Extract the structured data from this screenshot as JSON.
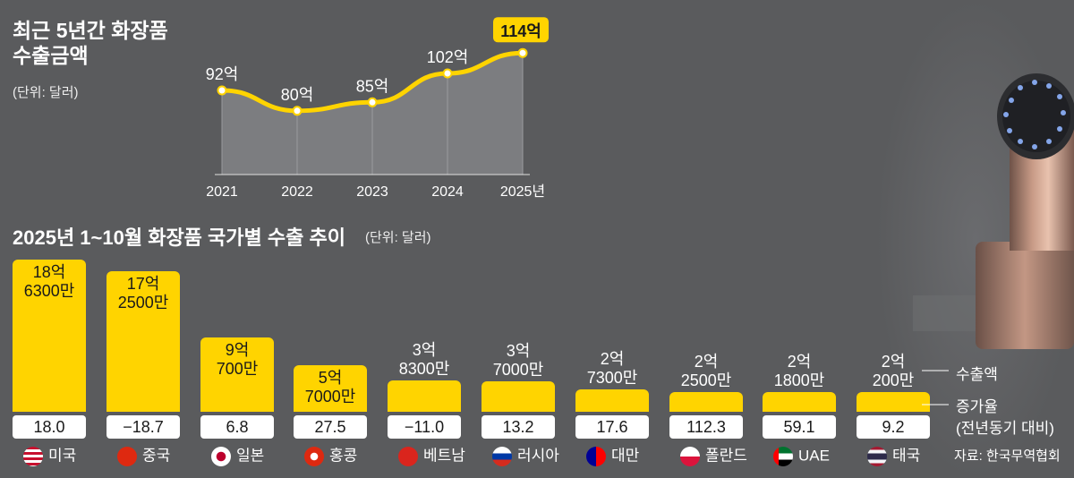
{
  "line_chart": {
    "title_line1": "최근 5년간 화장품",
    "title_line2": "수출금액",
    "unit": "(단위: 달러)"
  },
  "bar_chart": {
    "title": "2025년 1~10월 화장품 국가별 수출 추이",
    "unit": "(단위: 달러)",
    "legend_export": "수출액",
    "legend_growth_line1": "증가율",
    "legend_growth_line2": "(전년동기 대비)"
  },
  "source": "자료: 한국무역협회",
  "colors": {
    "accent": "#ffd400",
    "background": "#5a5b5d",
    "area": "#7e7f82"
  },
  "chart_data": [
    {
      "type": "line",
      "title": "최근 5년간 화장품 수출금액",
      "unit": "(단위: 달러)",
      "categories": [
        "2021",
        "2022",
        "2023",
        "2024",
        "2025년"
      ],
      "values": [
        92,
        80,
        85,
        102,
        114
      ],
      "value_labels": [
        "92억",
        "80억",
        "85억",
        "102억",
        "114억"
      ],
      "highlight_last": true
    },
    {
      "type": "bar",
      "title": "2025년 1~10월 화장품 국가별 수출 추이",
      "unit": "(단위: 달러)",
      "categories": [
        "미국",
        "중국",
        "일본",
        "홍콩",
        "베트남",
        "러시아",
        "대만",
        "폴란드",
        "UAE",
        "태국"
      ],
      "values": [
        18.63,
        17.25,
        9.07,
        5.7,
        3.83,
        3.7,
        2.73,
        2.25,
        2.18,
        2.02
      ],
      "value_labels": [
        [
          "18억",
          "6300만"
        ],
        [
          "17억",
          "2500만"
        ],
        [
          "9억",
          "700만"
        ],
        [
          "5억",
          "7000만"
        ],
        [
          "3억",
          "8300만"
        ],
        [
          "3억",
          "7000만"
        ],
        [
          "2억",
          "7300만"
        ],
        [
          "2억",
          "2500만"
        ],
        [
          "2억",
          "1800만"
        ],
        [
          "2억",
          "200만"
        ]
      ],
      "growth_rates": [
        "18.0",
        "−18.7",
        "6.8",
        "27.5",
        "−11.0",
        "13.2",
        "17.6",
        "112.3",
        "59.1",
        "9.2"
      ],
      "flag_icons": [
        "us-flag-icon",
        "china-flag-icon",
        "japan-flag-icon",
        "hongkong-flag-icon",
        "vietnam-flag-icon",
        "russia-flag-icon",
        "taiwan-flag-icon",
        "poland-flag-icon",
        "uae-flag-icon",
        "thailand-flag-icon"
      ]
    }
  ]
}
